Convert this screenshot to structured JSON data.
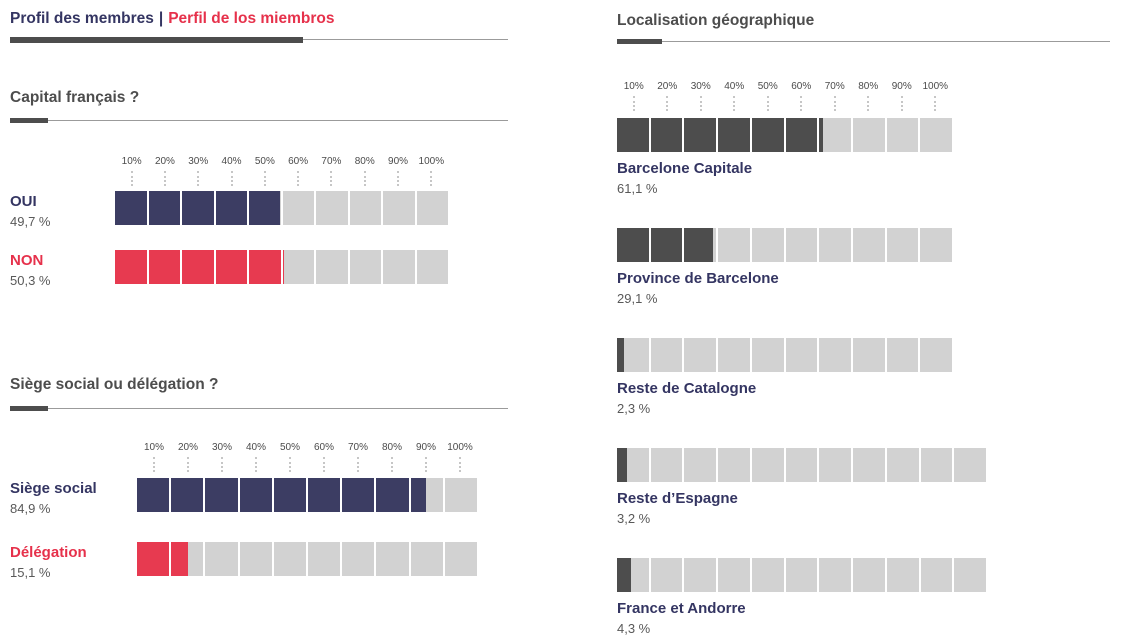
{
  "header": {
    "title_fr": "Profil des membres",
    "separator": "|",
    "title_es": "Perfil de los miembros"
  },
  "palette": {
    "navy": "#3C3D63",
    "red": "#E73A50",
    "charcoal": "#4D4D4D",
    "navy_text": "#343562",
    "red_text": "#E6314B",
    "segment_gray": "#D2D2D2",
    "value_gray": "#595959"
  },
  "axis_ticks": [
    "10%",
    "20%",
    "30%",
    "40%",
    "50%",
    "60%",
    "70%",
    "80%",
    "90%",
    "100%"
  ],
  "chart_data": [
    {
      "type": "bar",
      "orientation": "horizontal",
      "title": "Capital français ?",
      "unit": "%",
      "xlim": [
        0,
        100
      ],
      "tick_labels": [
        "10%",
        "20%",
        "30%",
        "40%",
        "50%",
        "60%",
        "70%",
        "80%",
        "90%",
        "100%"
      ],
      "series": [
        {
          "label": "OUI",
          "value": 49.7,
          "display": "49,7 %",
          "color": "navy",
          "label_color": "navy_text",
          "segments": 10
        },
        {
          "label": "NON",
          "value": 50.3,
          "display": "50,3 %",
          "color": "red",
          "label_color": "red_text",
          "segments": 10
        }
      ]
    },
    {
      "type": "bar",
      "orientation": "horizontal",
      "title": "Siège social ou délégation ?",
      "unit": "%",
      "xlim": [
        0,
        100
      ],
      "tick_labels": [
        "10%",
        "20%",
        "30%",
        "40%",
        "50%",
        "60%",
        "70%",
        "80%",
        "90%",
        "100%"
      ],
      "series": [
        {
          "label": "Siège social",
          "value": 84.9,
          "display": "84,9 %",
          "color": "navy",
          "label_color": "navy_text",
          "segments": 10
        },
        {
          "label": "Délégation",
          "value": 15.1,
          "display": "15,1 %",
          "color": "red",
          "label_color": "red_text",
          "segments": 10
        }
      ]
    },
    {
      "type": "bar",
      "orientation": "horizontal",
      "title": "Localisation géographique",
      "unit": "%",
      "xlim": [
        0,
        100
      ],
      "tick_labels": [
        "10%",
        "20%",
        "30%",
        "40%",
        "50%",
        "60%",
        "70%",
        "80%",
        "90%",
        "100%"
      ],
      "series": [
        {
          "label": "Barcelone Capitale",
          "value": 61.1,
          "display": "61,1 %",
          "color": "charcoal",
          "label_color": "navy_text",
          "segments": 10
        },
        {
          "label": "Province de Barcelone",
          "value": 29.1,
          "display": "29,1 %",
          "color": "charcoal",
          "label_color": "navy_text",
          "segments": 10
        },
        {
          "label": "Reste de Catalogne",
          "value": 2.3,
          "display": "2,3 %",
          "color": "charcoal",
          "label_color": "navy_text",
          "segments": 10
        },
        {
          "label": "Reste d’Espagne",
          "value": 3.2,
          "display": "3,2 %",
          "color": "charcoal",
          "label_color": "navy_text",
          "segments": 11
        },
        {
          "label": "France et Andorre",
          "value": 4.3,
          "display": "4,3 %",
          "color": "charcoal",
          "label_color": "navy_text",
          "segments": 11
        }
      ]
    }
  ]
}
